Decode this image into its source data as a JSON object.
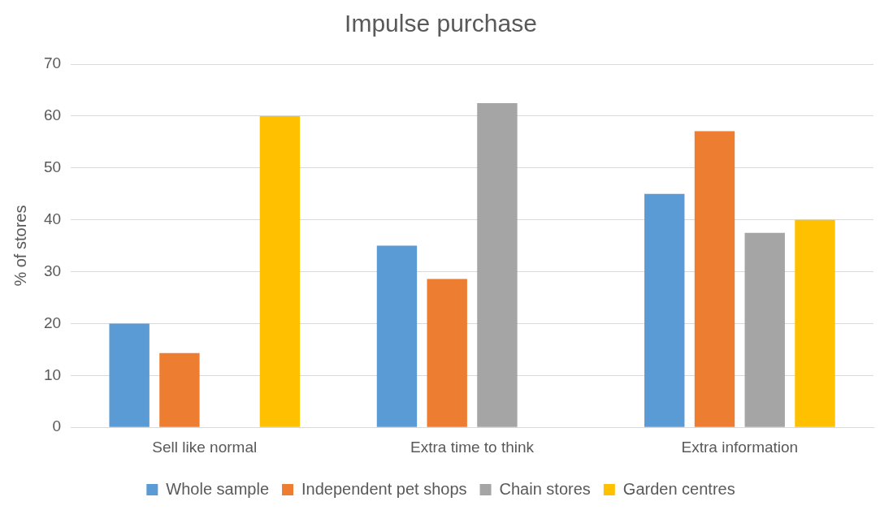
{
  "chart_data": {
    "type": "bar",
    "title": "Impulse purchase",
    "ylabel": "% of stores",
    "categories": [
      "Sell like normal",
      "Extra time to think",
      "Extra information"
    ],
    "series": [
      {
        "name": "Whole sample",
        "color": "#5b9bd5",
        "values": [
          20,
          35,
          45
        ]
      },
      {
        "name": "Independent pet shops",
        "color": "#ed7d31",
        "values": [
          14.3,
          28.6,
          57.1
        ]
      },
      {
        "name": "Chain stores",
        "color": "#a5a5a5",
        "values": [
          0,
          62.5,
          37.5
        ]
      },
      {
        "name": "Garden centres",
        "color": "#ffc000",
        "values": [
          60,
          0,
          40
        ]
      }
    ],
    "ylim": [
      0,
      70
    ],
    "yticks": [
      0,
      10,
      20,
      30,
      40,
      50,
      60,
      70
    ],
    "grid": "y",
    "legend": "bottom"
  }
}
